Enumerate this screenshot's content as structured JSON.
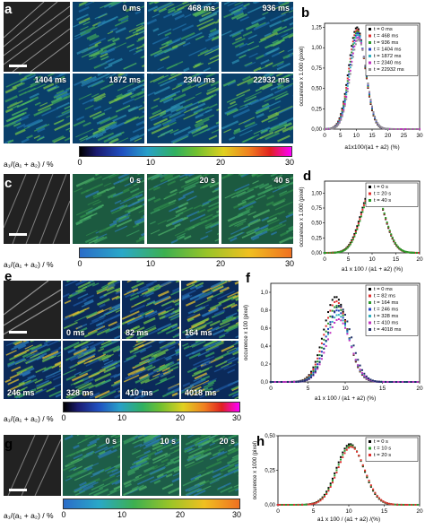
{
  "panels": {
    "a": {
      "letter": "a",
      "times": [
        "0 ms",
        "468 ms",
        "936 ms",
        "1404 ms",
        "1872 ms",
        "2340 ms",
        "22932 ms"
      ]
    },
    "b": {
      "letter": "b"
    },
    "c": {
      "letter": "c",
      "times": [
        "0 s",
        "20 s",
        "40 s"
      ]
    },
    "d": {
      "letter": "d"
    },
    "e": {
      "letter": "e",
      "times": [
        "0 ms",
        "82 ms",
        "164 ms",
        "246 ms",
        "328 ms",
        "410 ms",
        "4018 ms"
      ]
    },
    "f": {
      "letter": "f"
    },
    "g": {
      "letter": "g",
      "times": [
        "0 s",
        "10 s",
        "20 s"
      ]
    },
    "h": {
      "letter": "h"
    }
  },
  "colorbars": [
    {
      "axis_label": "a₁/(a₁ + a₂) / %",
      "ticks": [
        "0",
        "10",
        "20",
        "30"
      ],
      "scheme": "rainbow"
    },
    {
      "axis_label": "a₁/(a₁ + a₂) / %",
      "ticks": [
        "0",
        "10",
        "20",
        "30"
      ],
      "scheme": "warm"
    },
    {
      "axis_label": "a₁/(a₁ + a₂) / %",
      "ticks": [
        "0",
        "10",
        "20",
        "30"
      ],
      "scheme": "rainbow"
    },
    {
      "axis_label": "a₁/(a₁ + a₂) / %",
      "ticks": [
        "0",
        "10",
        "20",
        "30"
      ],
      "scheme": "warm"
    }
  ],
  "chart_data": [
    {
      "panel": "b",
      "type": "scatter",
      "xlabel": "a1x100/(a1 + a2) (%)",
      "ylabel": "occurence x 1.000 (pixel)",
      "xlim": [
        0,
        30
      ],
      "ylim": [
        0,
        1.3
      ],
      "xticks": [
        "0",
        "5",
        "10",
        "15",
        "20",
        "25",
        "30"
      ],
      "yticks": [
        "0,00",
        "0,25",
        "0,50",
        "0,75",
        "1,00",
        "1,25"
      ],
      "legend_position": "top-right",
      "peak_x": 10.5,
      "sigma": 2.6,
      "series": [
        {
          "name": "t =      0 ms",
          "peak": 1.25,
          "color": "#000000"
        },
        {
          "name": "t =   468 ms",
          "peak": 1.22,
          "color": "#e03030"
        },
        {
          "name": "t =   936 ms",
          "peak": 1.2,
          "color": "#2a9a2a"
        },
        {
          "name": "t = 1404 ms",
          "peak": 1.18,
          "color": "#2040c0"
        },
        {
          "name": "t = 1872 ms",
          "peak": 1.16,
          "color": "#30b0c0"
        },
        {
          "name": "t = 2340 ms",
          "peak": 1.13,
          "color": "#c030c0"
        },
        {
          "name": "t = 22932 ms",
          "peak": 1.1,
          "color": "#909090"
        }
      ]
    },
    {
      "panel": "d",
      "type": "scatter",
      "xlabel": "a1 x 100 / (a1 + a2) (%)",
      "ylabel": "occurence x 1.000 (pixel)",
      "xlim": [
        0,
        20
      ],
      "ylim": [
        0,
        1.2
      ],
      "xticks": [
        "0",
        "5",
        "10",
        "15",
        "20"
      ],
      "yticks": [
        "0,00",
        "0,25",
        "0,50",
        "0,75",
        "1,00"
      ],
      "legend_position": "top-right",
      "peak_x": 10.2,
      "sigma": 2.4,
      "series": [
        {
          "name": "t =  0 s",
          "peak": 1.1,
          "color": "#000000"
        },
        {
          "name": "t = 20 s",
          "peak": 1.08,
          "color": "#e03030"
        },
        {
          "name": "t = 40 s",
          "peak": 1.06,
          "color": "#2a9a2a"
        }
      ]
    },
    {
      "panel": "f",
      "type": "scatter",
      "xlabel": "a1 x 100 / (a1 + a2) (%)",
      "ylabel": "occurence x 100 (pixel)",
      "xlim": [
        0,
        20
      ],
      "ylim": [
        0,
        1.1
      ],
      "xticks": [
        "0",
        "5",
        "10",
        "15",
        "20"
      ],
      "yticks": [
        "0,0",
        "0,2",
        "0,4",
        "0,6",
        "0,8",
        "1,0"
      ],
      "legend_position": "top-right",
      "peak_x": 9.0,
      "sigma": 1.6,
      "series": [
        {
          "name": "t =      0 ms",
          "peak": 0.95,
          "color": "#000000"
        },
        {
          "name": "t =    82 ms",
          "peak": 0.9,
          "color": "#e03030"
        },
        {
          "name": "t =  164 ms",
          "peak": 0.85,
          "color": "#2a9a2a"
        },
        {
          "name": "t =  246 ms",
          "peak": 0.8,
          "color": "#2040c0"
        },
        {
          "name": "t =  328 ms",
          "peak": 0.75,
          "color": "#30b0c0"
        },
        {
          "name": "t =  410 ms",
          "peak": 0.7,
          "color": "#c030c0"
        },
        {
          "name": "t = 4018 ms",
          "peak": 0.85,
          "color": "#20306a"
        }
      ]
    },
    {
      "panel": "h",
      "type": "scatter",
      "xlabel": "a1 x 100 / (a1 + a2) /(%)",
      "ylabel": "occurence x 1000 (pixel)",
      "xlim": [
        0,
        20
      ],
      "ylim": [
        0,
        0.5
      ],
      "xticks": [
        "0",
        "5",
        "10",
        "15",
        "20"
      ],
      "yticks": [
        "0,00",
        "0,25",
        "0,50"
      ],
      "legend_position": "top-right",
      "peak_x": 10.3,
      "sigma": 1.9,
      "series": [
        {
          "name": "t =  0 s",
          "peak": 0.44,
          "color": "#000000"
        },
        {
          "name": "t = 10 s",
          "peak": 0.43,
          "color": "#2a9a2a"
        },
        {
          "name": "t = 20 s",
          "peak": 0.42,
          "color": "#e03030"
        }
      ]
    }
  ]
}
